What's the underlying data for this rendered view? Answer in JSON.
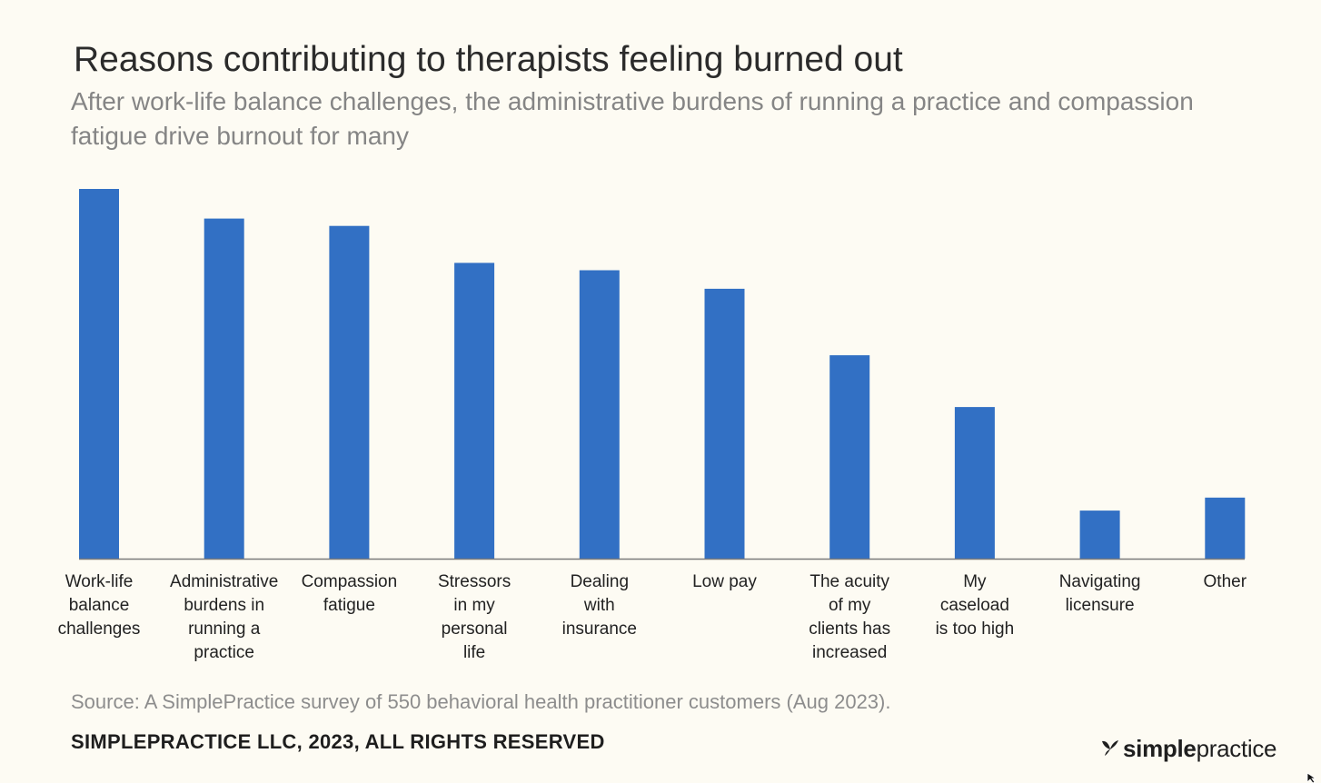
{
  "chart_data": {
    "type": "bar",
    "title": "Reasons contributing to therapists feeling burned out",
    "subtitle": "After work-life balance challenges, the administrative burdens of running a practice and compassion fatigue drive burnout for many",
    "categories": [
      "Work-life balance challenges",
      "Administrative burdens in running a practice",
      "Compassion fatigue",
      "Stressors in my personal life",
      "Dealing with insurance",
      "Low pay",
      "The acuity of my clients has increased",
      "My caseload is too high",
      "Navigating licensure",
      "Other"
    ],
    "label_lines": [
      [
        "Work-life",
        "balance",
        "challenges"
      ],
      [
        "Administrative",
        "burdens in",
        "running a",
        "practice"
      ],
      [
        "Compassion",
        "fatigue"
      ],
      [
        "Stressors",
        "in my",
        "personal",
        "life"
      ],
      [
        "Dealing",
        "with",
        "insurance"
      ],
      [
        "Low pay"
      ],
      [
        "The acuity",
        "of my",
        "clients has",
        "increased"
      ],
      [
        "My",
        "caseload",
        "is too high"
      ],
      [
        "Navigating",
        "licensure"
      ],
      [
        "Other"
      ]
    ],
    "values": [
      100,
      92,
      90,
      80,
      78,
      73,
      55,
      41,
      13,
      16.5
    ],
    "ylim": [
      0,
      100
    ],
    "xlabel": "",
    "ylabel": "",
    "grid": false,
    "bar_color": "#3270c4",
    "axis_color": "#7a7a7a"
  },
  "footer": {
    "source": "Source: A SimplePractice survey of 550 behavioral health practitioner customers (Aug 2023).",
    "copyright": "SIMPLEPRACTICE LLC, 2023, ALL RIGHTS RESERVED"
  },
  "brand": {
    "name_bold": "simple",
    "name_light": "practice",
    "logo_icon": "butterfly-icon"
  },
  "colors": {
    "background": "#fdfbf3",
    "title": "#2b2b2b",
    "subtitle": "#858585"
  }
}
